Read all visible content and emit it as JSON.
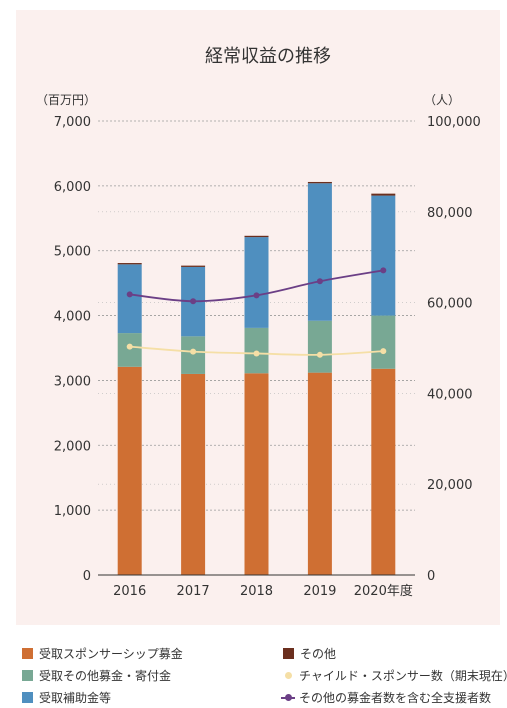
{
  "chart_data": {
    "type": "bar",
    "title": "経常収益の推移",
    "left_unit": "（百万円）",
    "right_unit": "（人）",
    "categories": [
      "2016",
      "2017",
      "2018",
      "2019",
      "2020年度"
    ],
    "left_ticks": [
      "0",
      "1,000",
      "2,000",
      "3,000",
      "4,000",
      "5,000",
      "6,000",
      "7,000"
    ],
    "right_ticks": [
      "0",
      "20,000",
      "40,000",
      "60,000",
      "80,000",
      "100,000"
    ],
    "ylim_left": [
      0,
      7000
    ],
    "ylim_right": [
      0,
      100000
    ],
    "stacked_series": [
      {
        "name": "受取スポンサーシップ募金",
        "color": "#cf6f33",
        "values": [
          3210,
          3100,
          3110,
          3120,
          3180
        ]
      },
      {
        "name": "受取その他募金・寄付金",
        "color": "#78a894",
        "values": [
          520,
          580,
          700,
          800,
          820
        ]
      },
      {
        "name": "受取補助金等",
        "color": "#4f8fbf",
        "values": [
          1060,
          1070,
          1400,
          2120,
          1850
        ]
      },
      {
        "name": "その他",
        "color": "#6b2f1e",
        "values": [
          20,
          20,
          20,
          20,
          30
        ]
      }
    ],
    "line_series": [
      {
        "name": "チャイルド・スポンサー数（期末現在）",
        "color": "#f5dfa6",
        "values": [
          50300,
          49200,
          48800,
          48500,
          49300
        ]
      },
      {
        "name": "その他の募金者数を含む全支援者数",
        "color": "#6b3f86",
        "values": [
          61800,
          60300,
          61600,
          64700,
          67100
        ]
      }
    ],
    "grid": true,
    "legend_position": "bottom"
  }
}
